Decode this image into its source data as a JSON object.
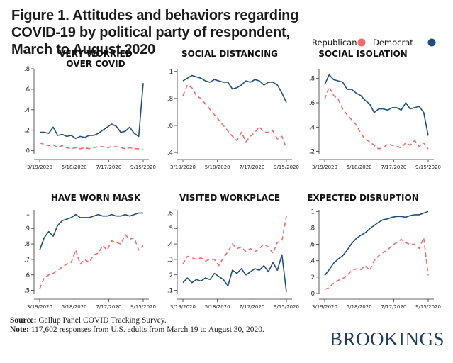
{
  "figure": {
    "title": "Figure 1. Attitudes and behaviors regarding COVID-19 by political party of respondent, March to August 2020",
    "legend": [
      {
        "label": "Republican",
        "color": "#f06b6b"
      },
      {
        "label": "Democrat",
        "color": "#1f4e79"
      }
    ],
    "source_label": "Source:",
    "source_text": "Gallup Panel COVID Tracking Survey.",
    "note_label": "Note:",
    "note_text": "117,602 responses from U.S. adults from March 19 to August 30, 2020.",
    "brand": "BROOKINGS"
  },
  "chart_data": [
    {
      "type": "line",
      "title": "VERY WORRIED\nOVER COVID",
      "ylim": [
        -0.03,
        0.8
      ],
      "yticks": [
        0,
        0.2,
        0.4,
        0.6,
        0.8
      ],
      "yticklabels": [
        "0",
        ".2",
        ".4",
        ".6",
        ".8"
      ],
      "xticklabels": [
        "3/19/2020",
        "5/18/2020",
        "7/17/2020",
        "9/15/2020"
      ],
      "x": [
        0,
        1,
        2,
        3,
        4,
        5,
        6,
        7,
        8,
        9,
        10,
        11,
        12,
        13,
        14,
        15,
        16,
        17,
        18,
        19,
        20,
        21,
        22,
        23
      ],
      "series": [
        {
          "name": "Republican",
          "style": "dashed",
          "color": "#f06b6b",
          "values": [
            0.08,
            0.06,
            0.05,
            0.06,
            0.03,
            0.05,
            0.03,
            0.02,
            0.03,
            0.02,
            0.03,
            0.02,
            0.03,
            0.04,
            0.04,
            0.03,
            0.04,
            0.04,
            0.03,
            0.02,
            0.03,
            0.02,
            0.02,
            0.01
          ]
        },
        {
          "name": "Democrat",
          "style": "solid",
          "color": "#1f4e79",
          "values": [
            0.18,
            0.18,
            0.17,
            0.23,
            0.15,
            0.16,
            0.14,
            0.15,
            0.12,
            0.14,
            0.13,
            0.15,
            0.15,
            0.17,
            0.2,
            0.23,
            0.26,
            0.24,
            0.18,
            0.19,
            0.23,
            0.17,
            0.14,
            0.66
          ]
        }
      ]
    },
    {
      "type": "line",
      "title": "SOCIAL DISTANCING",
      "ylim": [
        0.39,
        1.02
      ],
      "yticks": [
        0.4,
        0.6,
        0.8,
        1.0
      ],
      "yticklabels": [
        ".4",
        ".6",
        ".8",
        "1"
      ],
      "xticklabels": [
        "3/19/2020",
        "5/18/2020",
        "7/17/2020",
        "9/15/2020"
      ],
      "x": [
        0,
        1,
        2,
        3,
        4,
        5,
        6,
        7,
        8,
        9,
        10,
        11,
        12,
        13,
        14,
        15,
        16,
        17,
        18,
        19,
        20,
        21,
        22,
        23
      ],
      "series": [
        {
          "name": "Republican",
          "style": "dashed",
          "color": "#f06b6b",
          "values": [
            0.82,
            0.9,
            0.88,
            0.82,
            0.8,
            0.76,
            0.72,
            0.68,
            0.64,
            0.6,
            0.56,
            0.52,
            0.49,
            0.55,
            0.48,
            0.52,
            0.55,
            0.59,
            0.55,
            0.55,
            0.56,
            0.5,
            0.52,
            0.43
          ]
        },
        {
          "name": "Democrat",
          "style": "solid",
          "color": "#1f4e79",
          "values": [
            0.93,
            0.95,
            0.97,
            0.96,
            0.95,
            0.93,
            0.92,
            0.94,
            0.93,
            0.92,
            0.92,
            0.87,
            0.88,
            0.9,
            0.93,
            0.92,
            0.94,
            0.93,
            0.9,
            0.92,
            0.92,
            0.9,
            0.84,
            0.77
          ]
        }
      ]
    },
    {
      "type": "line",
      "title": "SOCIAL ISOLATION",
      "ylim": [
        0.18,
        0.88
      ],
      "yticks": [
        0.2,
        0.4,
        0.6,
        0.8
      ],
      "yticklabels": [
        ".2",
        ".4",
        ".6",
        ".8"
      ],
      "xticklabels": [
        "3/19/2020",
        "5/18/2020",
        "7/17/2020",
        "9/15/2020"
      ],
      "x": [
        0,
        1,
        2,
        3,
        4,
        5,
        6,
        7,
        8,
        9,
        10,
        11,
        12,
        13,
        14,
        15,
        16,
        17,
        18,
        19,
        20,
        21,
        22,
        23
      ],
      "series": [
        {
          "name": "Republican",
          "style": "dashed",
          "color": "#f06b6b",
          "values": [
            0.63,
            0.73,
            0.66,
            0.63,
            0.55,
            0.5,
            0.46,
            0.42,
            0.35,
            0.3,
            0.28,
            0.25,
            0.22,
            0.23,
            0.26,
            0.25,
            0.24,
            0.23,
            0.27,
            0.25,
            0.29,
            0.24,
            0.27,
            0.22
          ]
        },
        {
          "name": "Democrat",
          "style": "solid",
          "color": "#1f4e79",
          "values": [
            0.75,
            0.83,
            0.79,
            0.78,
            0.77,
            0.71,
            0.71,
            0.68,
            0.66,
            0.62,
            0.59,
            0.52,
            0.55,
            0.55,
            0.54,
            0.56,
            0.56,
            0.54,
            0.6,
            0.55,
            0.56,
            0.57,
            0.52,
            0.33
          ]
        }
      ]
    },
    {
      "type": "line",
      "title": "HAVE WORN MASK",
      "ylim": [
        0.48,
        1.02
      ],
      "yticks": [
        0.5,
        0.6,
        0.7,
        0.8,
        0.9,
        1.0
      ],
      "yticklabels": [
        ".5",
        ".6",
        ".7",
        ".8",
        ".9",
        "1"
      ],
      "xticklabels": [
        "3/19/2020",
        "5/18/2020",
        "7/17/2020",
        "9/15/2020"
      ],
      "x": [
        0,
        1,
        2,
        3,
        4,
        5,
        6,
        7,
        8,
        9,
        10,
        11,
        12,
        13,
        14,
        15,
        16,
        17,
        18,
        19,
        20,
        21,
        22,
        23
      ],
      "series": [
        {
          "name": "Republican",
          "style": "dashed",
          "color": "#f06b6b",
          "values": [
            0.51,
            0.58,
            0.6,
            0.61,
            0.63,
            0.65,
            0.67,
            0.68,
            0.76,
            0.67,
            0.7,
            0.68,
            0.73,
            0.74,
            0.79,
            0.76,
            0.82,
            0.81,
            0.8,
            0.86,
            0.83,
            0.84,
            0.76,
            0.79
          ]
        },
        {
          "name": "Democrat",
          "style": "solid",
          "color": "#1f4e79",
          "values": [
            0.76,
            0.84,
            0.88,
            0.85,
            0.92,
            0.95,
            0.96,
            0.97,
            0.99,
            0.97,
            0.97,
            0.97,
            0.98,
            0.99,
            0.98,
            0.98,
            0.99,
            0.98,
            0.98,
            0.99,
            0.98,
            0.99,
            1.0,
            1.0
          ]
        }
      ]
    },
    {
      "type": "line",
      "title": "VISITED WORKPLACE",
      "ylim": [
        0.08,
        0.62
      ],
      "yticks": [
        0.1,
        0.2,
        0.3,
        0.4,
        0.5,
        0.6
      ],
      "yticklabels": [
        ".1",
        ".2",
        ".3",
        ".4",
        ".5",
        ".6"
      ],
      "xticklabels": [
        "3/19/2020",
        "5/18/2020",
        "7/17/2020",
        "9/15/2020"
      ],
      "x": [
        0,
        1,
        2,
        3,
        4,
        5,
        6,
        7,
        8,
        9,
        10,
        11,
        12,
        13,
        14,
        15,
        16,
        17,
        18,
        19,
        20,
        21,
        22,
        23
      ],
      "series": [
        {
          "name": "Republican",
          "style": "dashed",
          "color": "#f06b6b",
          "values": [
            0.27,
            0.32,
            0.31,
            0.3,
            0.31,
            0.29,
            0.3,
            0.3,
            0.26,
            0.31,
            0.35,
            0.4,
            0.37,
            0.38,
            0.35,
            0.37,
            0.35,
            0.37,
            0.4,
            0.38,
            0.34,
            0.41,
            0.42,
            0.58
          ]
        },
        {
          "name": "Democrat",
          "style": "solid",
          "color": "#1f4e79",
          "values": [
            0.15,
            0.18,
            0.15,
            0.17,
            0.16,
            0.18,
            0.17,
            0.21,
            0.19,
            0.17,
            0.13,
            0.23,
            0.21,
            0.24,
            0.2,
            0.22,
            0.24,
            0.23,
            0.26,
            0.22,
            0.28,
            0.23,
            0.33,
            0.09
          ]
        }
      ]
    },
    {
      "type": "line",
      "title": "EXPECTED DISRUPTION",
      "ylim": [
        0.0,
        1.02
      ],
      "yticks": [
        0.0,
        0.2,
        0.4,
        0.6,
        0.8,
        1.0
      ],
      "yticklabels": [
        "0",
        ".2",
        ".4",
        ".6",
        ".8",
        "1"
      ],
      "xticklabels": [
        "3/19/2020",
        "5/18/2020",
        "7/17/2020",
        "9/15/2020"
      ],
      "x": [
        0,
        1,
        2,
        3,
        4,
        5,
        6,
        7,
        8,
        9,
        10,
        11,
        12,
        13,
        14,
        15,
        16,
        17,
        18,
        19,
        20,
        21,
        22,
        23
      ],
      "series": [
        {
          "name": "Republican",
          "style": "dashed",
          "color": "#f06b6b",
          "values": [
            0.05,
            0.07,
            0.13,
            0.16,
            0.18,
            0.22,
            0.28,
            0.3,
            0.29,
            0.34,
            0.28,
            0.4,
            0.46,
            0.5,
            0.53,
            0.59,
            0.62,
            0.66,
            0.62,
            0.6,
            0.6,
            0.55,
            0.68,
            0.22
          ]
        },
        {
          "name": "Democrat",
          "style": "solid",
          "color": "#1f4e79",
          "values": [
            0.22,
            0.29,
            0.37,
            0.42,
            0.46,
            0.53,
            0.61,
            0.67,
            0.71,
            0.74,
            0.79,
            0.83,
            0.87,
            0.9,
            0.91,
            0.93,
            0.94,
            0.94,
            0.93,
            0.95,
            0.96,
            0.96,
            0.98,
            1.0
          ]
        }
      ]
    }
  ]
}
